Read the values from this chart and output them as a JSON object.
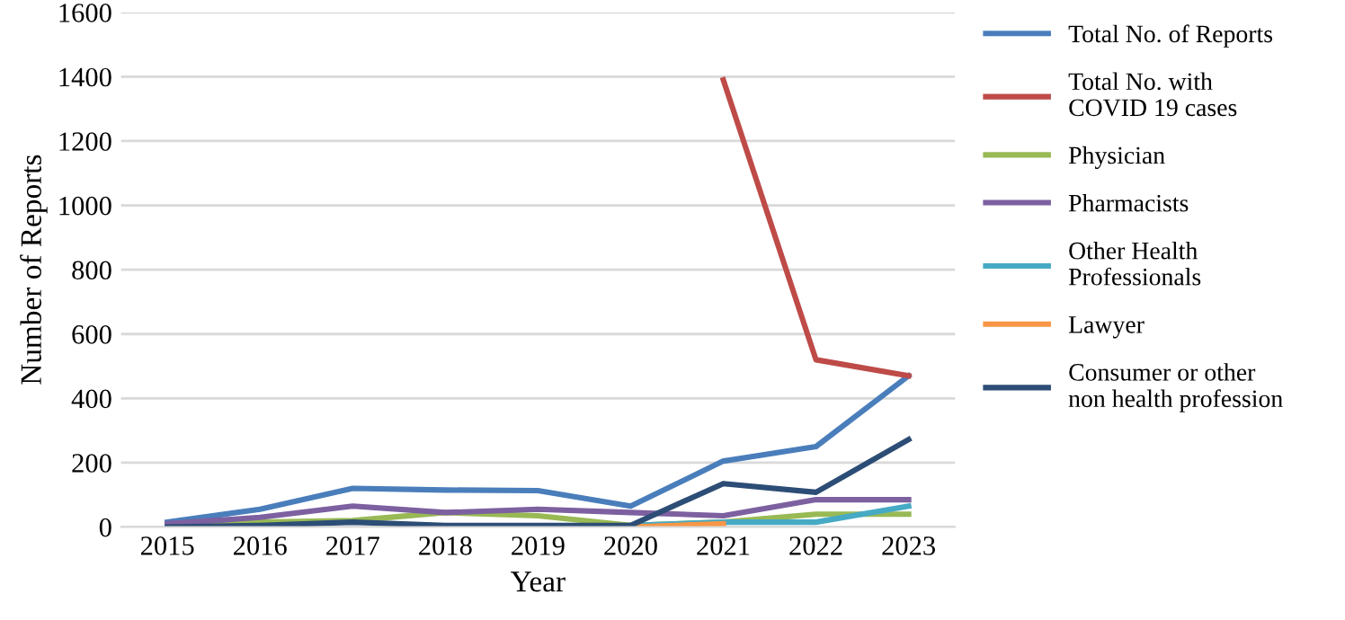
{
  "chart_data": {
    "type": "line",
    "xlabel": "Year",
    "ylabel": "Number of Reports",
    "categories": [
      "2015",
      "2016",
      "2017",
      "2018",
      "2019",
      "2020",
      "2021",
      "2022",
      "2023"
    ],
    "series": [
      {
        "name": "Total No. of Reports",
        "color": "#4a7ebb",
        "values": [
          15,
          55,
          120,
          115,
          113,
          65,
          205,
          250,
          470
        ]
      },
      {
        "name": "Total No. with\nCOVID 19 cases",
        "color": "#be4b48",
        "values": [
          null,
          null,
          null,
          null,
          null,
          null,
          1390,
          520,
          470
        ]
      },
      {
        "name": "Physician",
        "color": "#98b954",
        "values": [
          5,
          15,
          20,
          45,
          35,
          5,
          15,
          40,
          40
        ]
      },
      {
        "name": "Pharmacists",
        "color": "#7d60a0",
        "values": [
          10,
          30,
          65,
          45,
          55,
          45,
          35,
          85,
          85
        ]
      },
      {
        "name": "Other Health\nProfessionals",
        "color": "#46aac5",
        "values": [
          null,
          null,
          null,
          null,
          null,
          5,
          15,
          15,
          65
        ]
      },
      {
        "name": "Lawyer",
        "color": "#f79646",
        "values": [
          null,
          null,
          null,
          null,
          null,
          0,
          10,
          null,
          null
        ]
      },
      {
        "name": "Consumer or other\nnon health profession",
        "color": "#2c4d75",
        "values": [
          0,
          5,
          15,
          5,
          5,
          5,
          135,
          108,
          272
        ]
      }
    ],
    "ylim": [
      0,
      1600
    ],
    "yticks": [
      0,
      200,
      400,
      600,
      800,
      1000,
      1200,
      1400,
      1600
    ],
    "grid": "y",
    "legend": "right",
    "marker": "none",
    "line_style": "solid"
  }
}
